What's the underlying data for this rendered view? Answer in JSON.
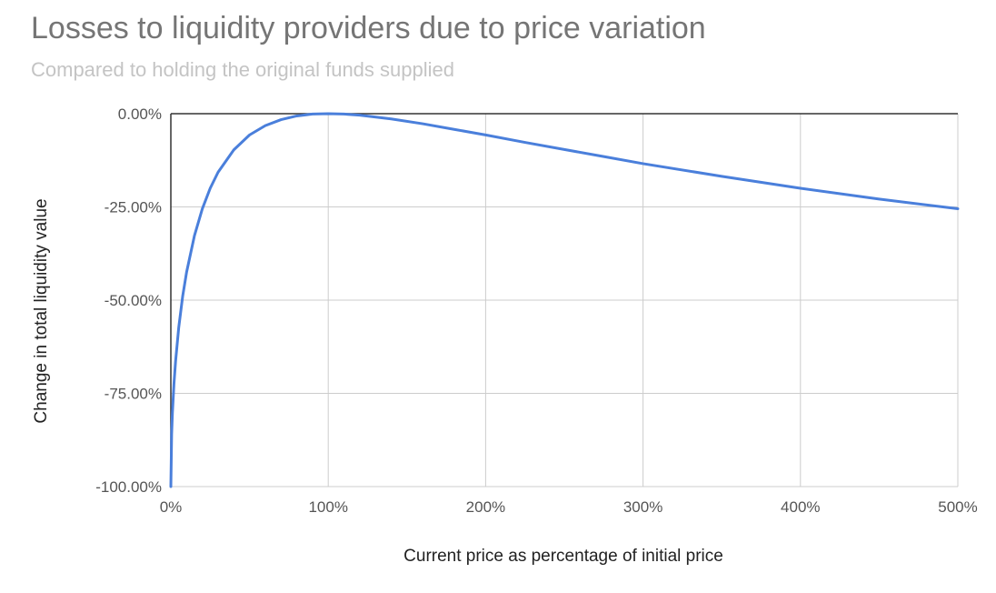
{
  "chart_data": {
    "type": "line",
    "title": "Losses to liquidity providers due to price variation",
    "subtitle": "Compared to holding the original funds supplied",
    "xlabel": "Current price as percentage of initial price",
    "ylabel": "Change in total liquidity value",
    "xlim": [
      0,
      500
    ],
    "ylim": [
      -100,
      0
    ],
    "x_ticks": [
      "0%",
      "100%",
      "200%",
      "300%",
      "400%",
      "500%"
    ],
    "y_ticks": [
      "0.00%",
      "-25.00%",
      "-50.00%",
      "-75.00%",
      "-100.00%"
    ],
    "grid": true,
    "series_color": "#4a7fdb",
    "series": [
      {
        "x": [
          0,
          0.5,
          1,
          2,
          3,
          5,
          7.5,
          10,
          15,
          20,
          25,
          30,
          40,
          50,
          60,
          70,
          80,
          90,
          100,
          110,
          120,
          140,
          160,
          180,
          200,
          225,
          250,
          275,
          300,
          350,
          400,
          450,
          500
        ],
        "y": [
          -100,
          -85.9,
          -80.2,
          -72.3,
          -66.4,
          -57.4,
          -49.0,
          -42.5,
          -32.7,
          -25.5,
          -20.0,
          -15.7,
          -9.7,
          -5.7,
          -3.2,
          -1.6,
          -0.6,
          -0.1,
          0.0,
          -0.1,
          -0.4,
          -1.4,
          -2.7,
          -4.2,
          -5.7,
          -7.7,
          -9.6,
          -11.5,
          -13.4,
          -16.8,
          -20.0,
          -22.9,
          -25.5
        ]
      }
    ]
  }
}
